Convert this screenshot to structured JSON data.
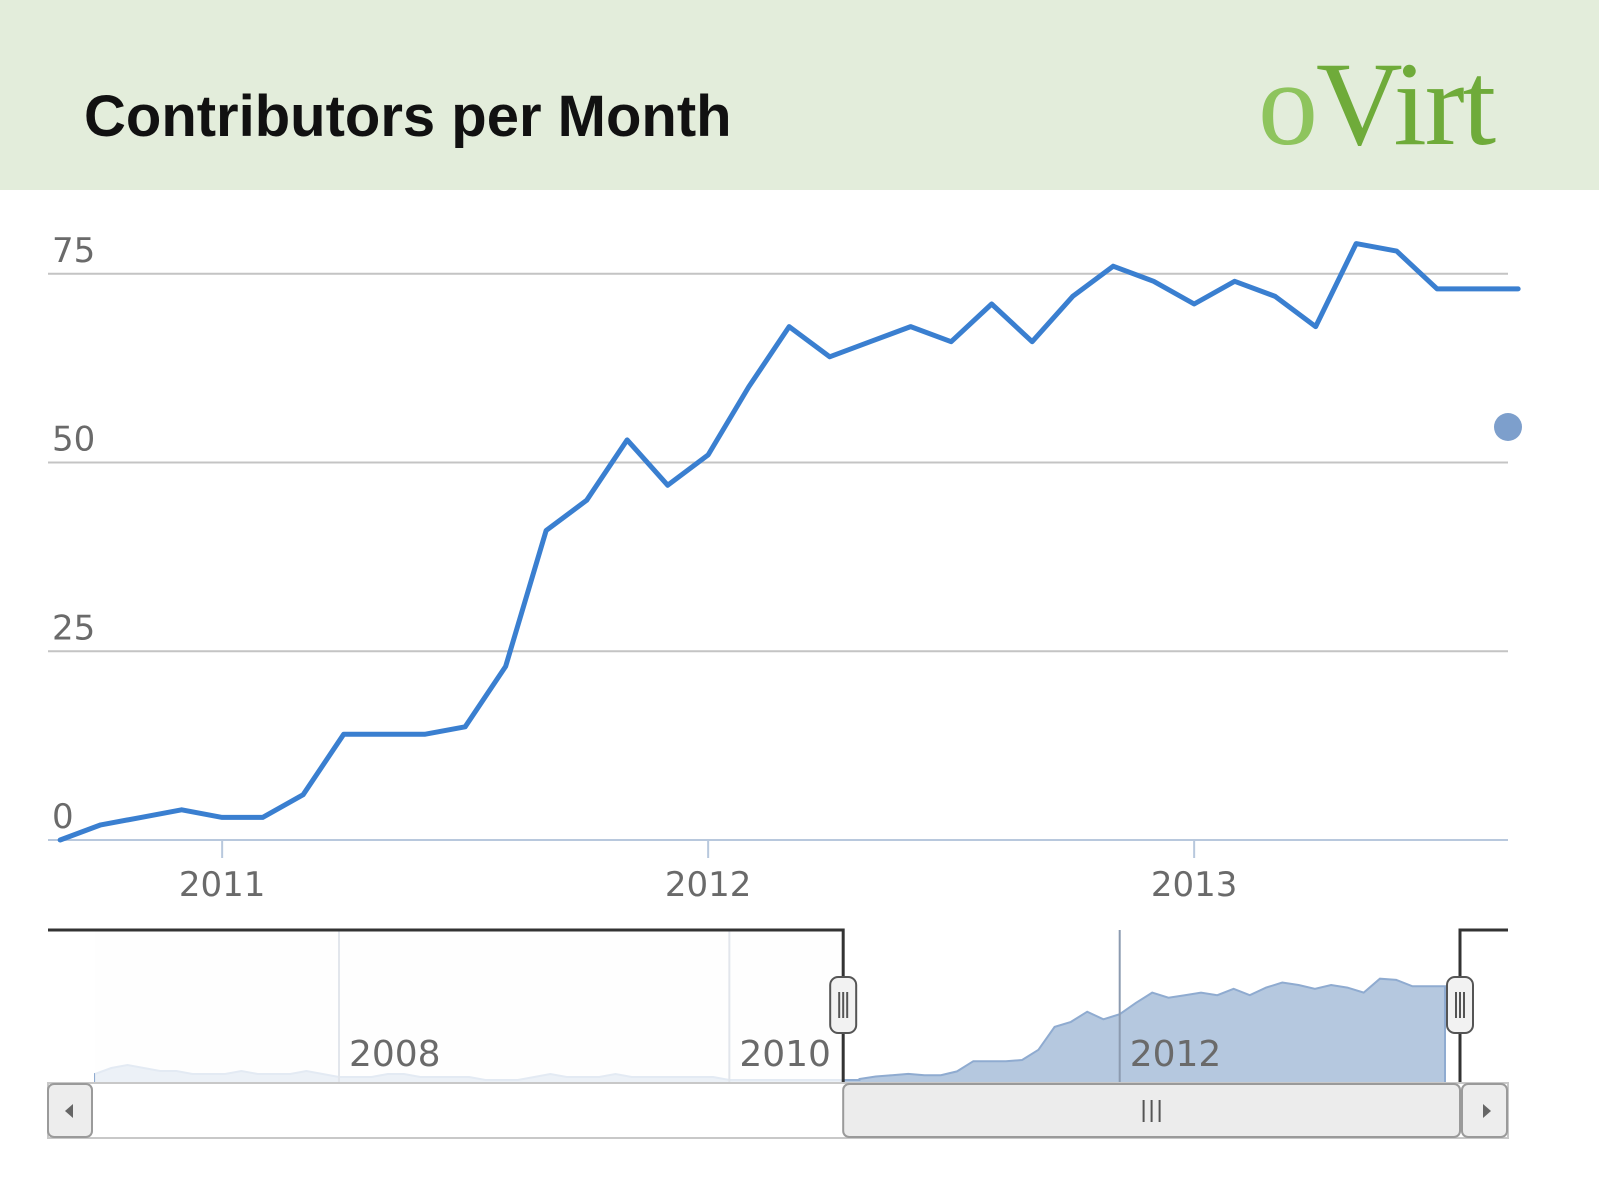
{
  "slide": {
    "title": "Contributors per Month",
    "logo_text": "oVirt"
  },
  "colors": {
    "header_bg": "#e3eddb",
    "logo": "#6fab3a",
    "line": "#3a7fd0",
    "navigator_fill": "#b5c8df",
    "legend_dot": "#7d9fcc"
  },
  "chart_data": {
    "type": "line",
    "title": "Contributors per Month",
    "xlabel": "",
    "ylabel": "",
    "grid": true,
    "x_ticks": [
      "2011",
      "2012",
      "2013"
    ],
    "y_ticks": [
      0,
      25,
      50,
      75
    ],
    "ylim": [
      0,
      80
    ],
    "xlim": [
      "2010-08",
      "2013-09"
    ],
    "series": [
      {
        "name": "",
        "x": [
          "2010-09",
          "2010-10",
          "2010-11",
          "2010-12",
          "2011-01",
          "2011-02",
          "2011-03",
          "2011-04",
          "2011-05",
          "2011-06",
          "2011-07",
          "2011-08",
          "2011-09",
          "2011-10",
          "2011-11",
          "2011-12",
          "2012-01",
          "2012-02",
          "2012-03",
          "2012-04",
          "2012-05",
          "2012-06",
          "2012-07",
          "2012-08",
          "2012-09",
          "2012-10",
          "2012-11",
          "2012-12",
          "2013-01",
          "2013-02",
          "2013-03",
          "2013-04",
          "2013-05",
          "2013-06",
          "2013-07",
          "2013-08",
          "2013-09"
        ],
        "values": [
          0,
          2,
          3,
          4,
          3,
          3,
          6,
          14,
          14,
          14,
          15,
          23,
          41,
          45,
          53,
          47,
          51,
          60,
          68,
          64,
          66,
          68,
          66,
          71,
          66,
          72,
          76,
          74,
          71,
          74,
          72,
          68,
          79,
          78,
          73,
          73,
          73
        ]
      }
    ],
    "navigator": {
      "type": "area",
      "x_ticks": [
        "2008",
        "2010",
        "2012"
      ],
      "selected_range": [
        "2010-08",
        "2013-09"
      ]
    },
    "legend_position": "right"
  }
}
